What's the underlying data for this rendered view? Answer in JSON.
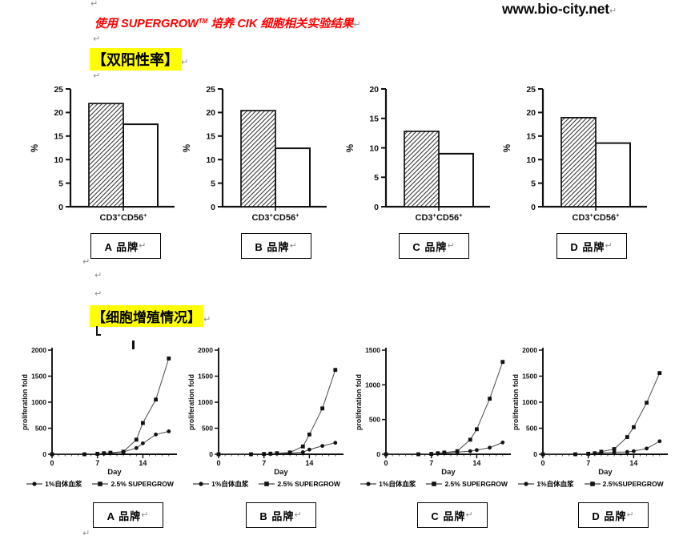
{
  "marks": {
    "pilcrow": "↵"
  },
  "header": {
    "website": "www.bio-city.net",
    "title_prefix": "使用 SUPERGROW",
    "title_tm": "TM",
    "title_suffix": " 培养 CIK 细胞相关实验结果"
  },
  "sections": {
    "dual_positive_heading": "【双阳性率】",
    "proliferation_heading": "【细胞增殖情况】"
  },
  "brands_row1": [
    "A 品牌",
    "B 品牌",
    "C 品牌",
    "D 品牌"
  ],
  "brands_row2": [
    "A 品牌",
    "B 品牌",
    "C 品牌",
    "D 品牌"
  ],
  "chart_data": [
    {
      "type": "bar",
      "brand": "A 品牌",
      "categories": [
        "CD3+CD56+"
      ],
      "ylabel": "%",
      "ylim": [
        0,
        25
      ],
      "yticks": [
        0,
        5,
        10,
        15,
        20,
        25
      ],
      "series": [
        {
          "style": "hatched",
          "values": [
            21.9
          ]
        },
        {
          "style": "white",
          "values": [
            17.5
          ]
        }
      ]
    },
    {
      "type": "bar",
      "brand": "B 品牌",
      "categories": [
        "CD3+CD56+"
      ],
      "ylabel": "%",
      "ylim": [
        0,
        25
      ],
      "yticks": [
        0,
        5,
        10,
        15,
        20,
        25
      ],
      "series": [
        {
          "style": "hatched",
          "values": [
            20.4
          ]
        },
        {
          "style": "white",
          "values": [
            12.4
          ]
        }
      ]
    },
    {
      "type": "bar",
      "brand": "C 品牌",
      "categories": [
        "CD3+CD56+"
      ],
      "ylabel": "%",
      "ylim": [
        0,
        20
      ],
      "yticks": [
        0,
        5,
        10,
        15,
        20
      ],
      "series": [
        {
          "style": "hatched",
          "values": [
            12.8
          ]
        },
        {
          "style": "white",
          "values": [
            9.0
          ]
        }
      ]
    },
    {
      "type": "bar",
      "brand": "D 品牌",
      "categories": [
        "CD3+CD56+"
      ],
      "ylabel": "%",
      "ylim": [
        0,
        25
      ],
      "yticks": [
        0,
        5,
        10,
        15,
        20,
        25
      ],
      "series": [
        {
          "style": "hatched",
          "values": [
            18.9
          ]
        },
        {
          "style": "white",
          "values": [
            13.5
          ]
        }
      ]
    },
    {
      "type": "line",
      "brand": "A 品牌",
      "xlabel": "Day",
      "ylabel": "proliferation fold",
      "xlim": [
        0,
        18.5
      ],
      "ylim": [
        0,
        2000
      ],
      "xticks": [
        0,
        7,
        14
      ],
      "yticks": [
        0,
        500,
        1000,
        1500,
        2000
      ],
      "x": [
        0,
        5,
        7,
        8,
        9,
        11,
        13,
        14,
        16,
        18
      ],
      "series": [
        {
          "name": "1%自体血浆",
          "marker": "circle",
          "values": [
            0,
            0,
            5,
            10,
            20,
            45,
            120,
            210,
            380,
            440
          ]
        },
        {
          "name": "2.5% SUPERGROW",
          "marker": "square",
          "values": [
            0,
            0,
            10,
            20,
            30,
            50,
            280,
            600,
            1050,
            1840
          ]
        }
      ]
    },
    {
      "type": "line",
      "brand": "B 品牌",
      "xlabel": "Day",
      "ylabel": "proliferation fold",
      "xlim": [
        0,
        18.5
      ],
      "ylim": [
        0,
        2000
      ],
      "xticks": [
        0,
        7,
        14
      ],
      "yticks": [
        0,
        500,
        1000,
        1500,
        2000
      ],
      "x": [
        0,
        5,
        7,
        8,
        9,
        11,
        13,
        14,
        16,
        18
      ],
      "series": [
        {
          "name": "1%自体血浆",
          "marker": "circle",
          "values": [
            0,
            0,
            5,
            8,
            12,
            25,
            40,
            90,
            160,
            220
          ]
        },
        {
          "name": "2.5% SUPERGROW",
          "marker": "square",
          "values": [
            0,
            0,
            5,
            12,
            20,
            35,
            150,
            380,
            880,
            1620
          ]
        }
      ]
    },
    {
      "type": "line",
      "brand": "C 品牌",
      "xlabel": "Day",
      "ylabel": "proliferation fold",
      "xlim": [
        0,
        18.5
      ],
      "ylim": [
        0,
        1500
      ],
      "xticks": [
        0,
        7,
        14
      ],
      "yticks": [
        0,
        500,
        1000,
        1500
      ],
      "x": [
        0,
        5,
        7,
        8,
        9,
        11,
        13,
        14,
        16,
        18
      ],
      "series": [
        {
          "name": "1%自体血浆",
          "marker": "circle",
          "values": [
            0,
            0,
            5,
            10,
            18,
            30,
            45,
            60,
            95,
            170
          ]
        },
        {
          "name": "2.5% SUPERGROW",
          "marker": "square",
          "values": [
            0,
            0,
            5,
            15,
            25,
            45,
            210,
            360,
            800,
            1330
          ]
        }
      ]
    },
    {
      "type": "line",
      "brand": "D 品牌",
      "xlabel": "Day",
      "ylabel": "proliferation fold",
      "xlim": [
        0,
        18.5
      ],
      "ylim": [
        0,
        2000
      ],
      "xticks": [
        0,
        7,
        14
      ],
      "yticks": [
        0,
        500,
        1000,
        1500,
        2000
      ],
      "x": [
        0,
        5,
        7,
        8,
        9,
        11,
        13,
        14,
        16,
        18
      ],
      "series": [
        {
          "name": "1%自体血浆",
          "marker": "circle",
          "values": [
            0,
            0,
            5,
            15,
            25,
            40,
            45,
            60,
            110,
            250
          ]
        },
        {
          "name": "2.5%SUPERGROW",
          "marker": "square",
          "values": [
            0,
            0,
            10,
            20,
            50,
            100,
            330,
            520,
            990,
            1560
          ]
        }
      ]
    }
  ]
}
